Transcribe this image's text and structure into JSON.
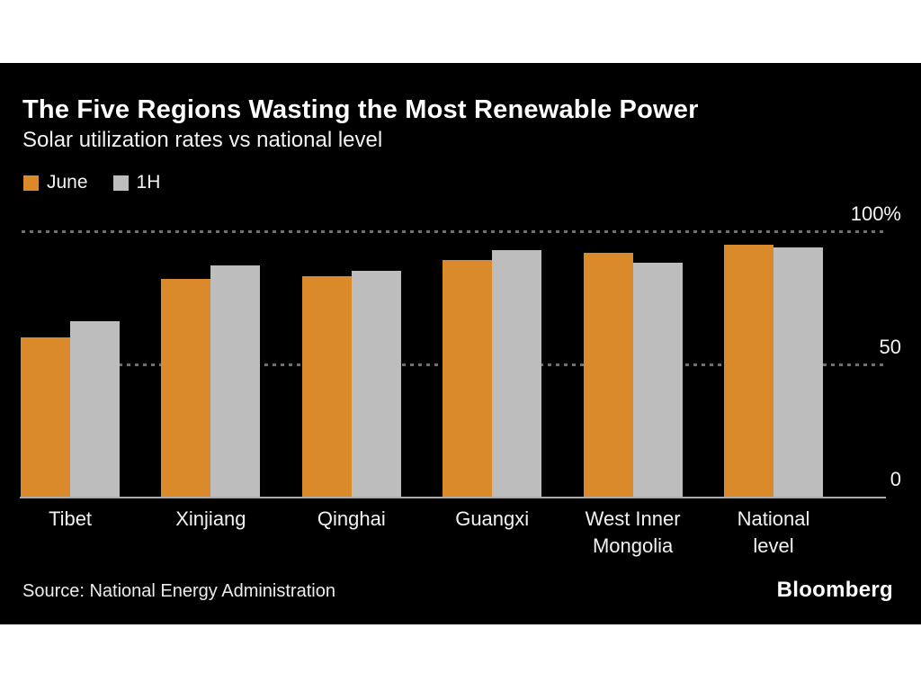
{
  "page": {
    "background": "#ffffff"
  },
  "card": {
    "background": "#000000"
  },
  "header": {
    "title": "The Five Regions Wasting the Most Renewable Power",
    "subtitle": "Solar utilization rates vs national level"
  },
  "legend": [
    {
      "label": "June",
      "color": "#db8a2b"
    },
    {
      "label": "1H",
      "color": "#bdbdbd"
    }
  ],
  "chart_data": {
    "type": "bar",
    "title": "The Five Regions Wasting the Most Renewable Power",
    "subtitle": "Solar utilization rates vs national level",
    "categories": [
      "Tibet",
      "Xinjiang",
      "Qinghai",
      "Guangxi",
      "West Inner Mongolia",
      "National level"
    ],
    "series": [
      {
        "name": "June",
        "color": "#db8a2b",
        "values": [
          60,
          82,
          83,
          89,
          92,
          95
        ]
      },
      {
        "name": "1H",
        "color": "#bdbdbd",
        "values": [
          66,
          87,
          85,
          93,
          88,
          94
        ]
      }
    ],
    "xlabel": "",
    "ylabel": "",
    "unit": "%",
    "ylim": [
      0,
      100
    ],
    "yticks": [
      {
        "value": 0,
        "label": "0"
      },
      {
        "value": 50,
        "label": "50"
      },
      {
        "value": 100,
        "label": "100%"
      }
    ],
    "grid": "horizontal dotted lines at 50 and 100, solid baseline at 0",
    "legend_position": "top-left",
    "background": "#000000"
  },
  "footer": {
    "source": "Source: National Energy Administration",
    "brand": "Bloomberg"
  }
}
